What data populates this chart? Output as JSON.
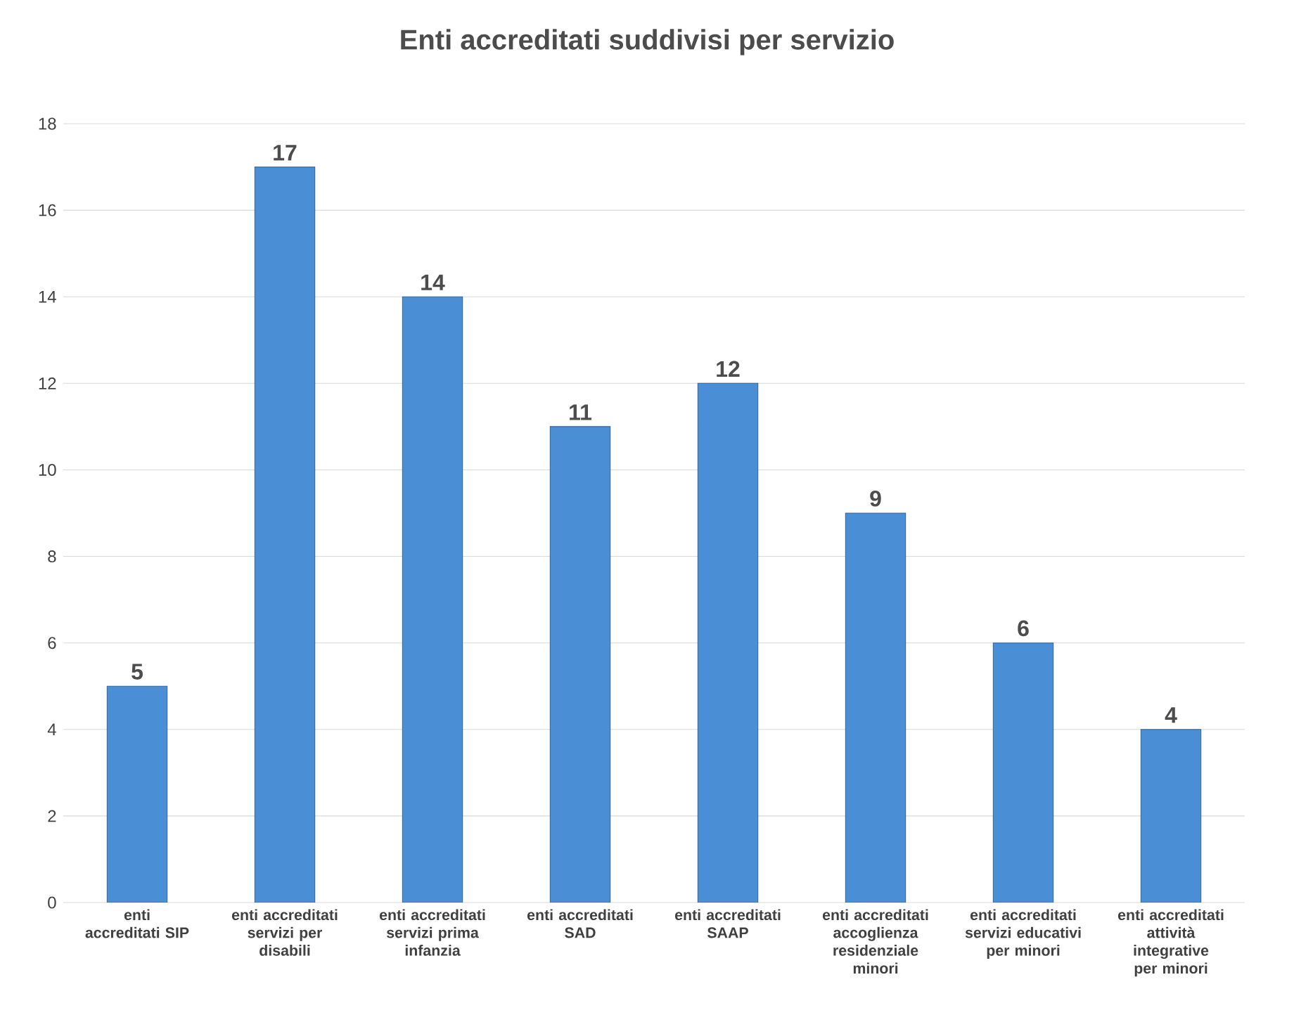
{
  "chart_data": {
    "type": "bar",
    "title": "Enti accreditati suddivisi per servizio",
    "categories": [
      "enti accreditati SIP",
      "enti accreditati servizi per disabili",
      "enti accreditati servizi prima infanzia",
      "enti accreditati SAD",
      "enti accreditati SAAP",
      "enti accreditati accoglienza residenziale minori",
      "enti accreditati servizi educativi per minori",
      "enti accreditati attività integrative per minori"
    ],
    "values": [
      5,
      17,
      14,
      11,
      12,
      9,
      6,
      4
    ],
    "color": "#4a8fd6",
    "ylim": [
      0,
      18
    ],
    "yticks": [
      0,
      2,
      4,
      6,
      8,
      10,
      12,
      14,
      16,
      18
    ],
    "grid": "y",
    "data_labels": true
  }
}
